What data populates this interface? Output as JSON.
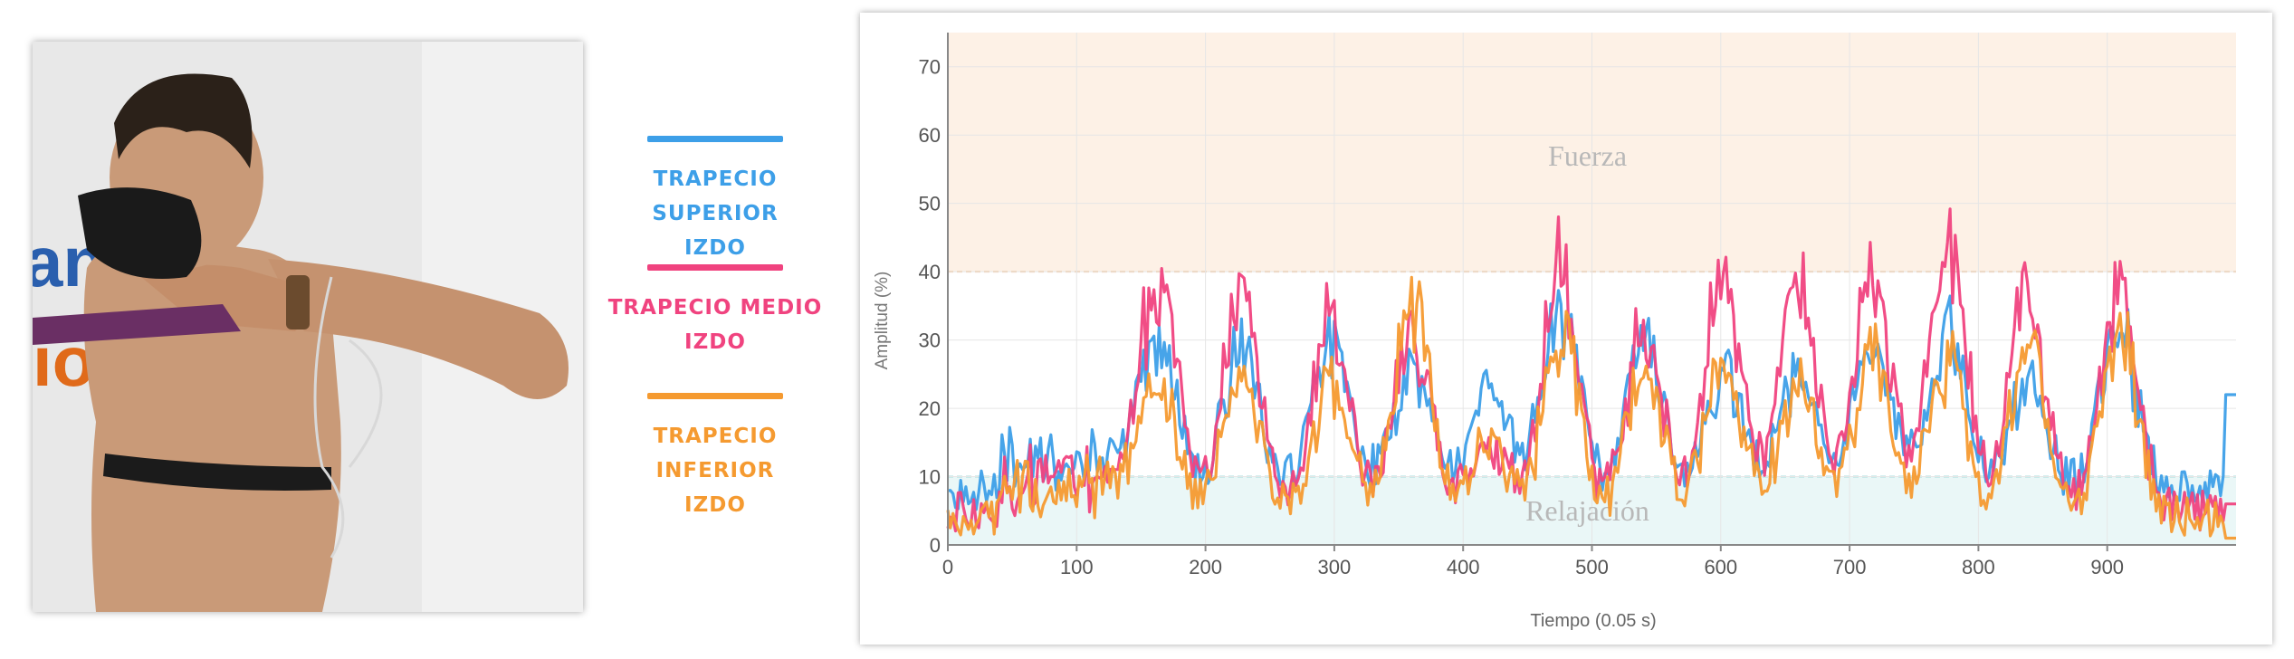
{
  "legend": {
    "items": [
      {
        "label_line1": "TRAPECIO SUPERIOR",
        "label_line2": "IZDO",
        "color": "#3d9fe8"
      },
      {
        "label_line1": "TRAPECIO MEDIO",
        "label_line2": "IZDO",
        "color": "#f0437f"
      },
      {
        "label_line1": "TRAPECIO INFERIOR",
        "label_line2": "IZDO",
        "color": "#f59a30"
      }
    ]
  },
  "photo": {
    "sign_letters_top": "ano",
    "sign_letters_bottom": "io"
  },
  "chart_data": {
    "type": "line",
    "xlabel": "Tiempo (0.05 s)",
    "ylabel": "Amplitud (%)",
    "xlim": [
      0,
      1000
    ],
    "ylim": [
      0,
      75
    ],
    "xticks": [
      0,
      100,
      200,
      300,
      400,
      500,
      600,
      700,
      800,
      900
    ],
    "yticks": [
      0,
      10,
      20,
      30,
      40,
      50,
      60,
      70
    ],
    "grid": true,
    "zones": [
      {
        "label": "Fuerza",
        "from": 40,
        "to": 75,
        "color": "#fdf1e6"
      },
      {
        "label": "Relajación",
        "from": 0,
        "to": 10,
        "color": "#eaf7f7"
      }
    ],
    "peaks_x": [
      165,
      228,
      298,
      360,
      420,
      476,
      541,
      602,
      660,
      718,
      776,
      838,
      909
    ],
    "series": [
      {
        "name": "TRAPECIO SUPERIOR IZDO",
        "color": "#3d9fe8",
        "peaks": [
          31,
          30,
          33,
          27,
          24,
          37,
          31,
          27,
          27,
          31,
          33,
          26,
          34
        ],
        "base": 8,
        "end_value": 22
      },
      {
        "name": "TRAPECIO MEDIO IZDO",
        "color": "#f0437f",
        "peaks": [
          40,
          40,
          35,
          33,
          16,
          43,
          33,
          43,
          42,
          43,
          49,
          39,
          40
        ],
        "base": 5,
        "end_value": 6
      },
      {
        "name": "TRAPECIO INFERIOR IZDO",
        "color": "#f59a30",
        "peaks": [
          24,
          26,
          25,
          37,
          16,
          34,
          27,
          28,
          25,
          31,
          28,
          31,
          33
        ],
        "base": 4,
        "end_value": 1
      }
    ]
  }
}
